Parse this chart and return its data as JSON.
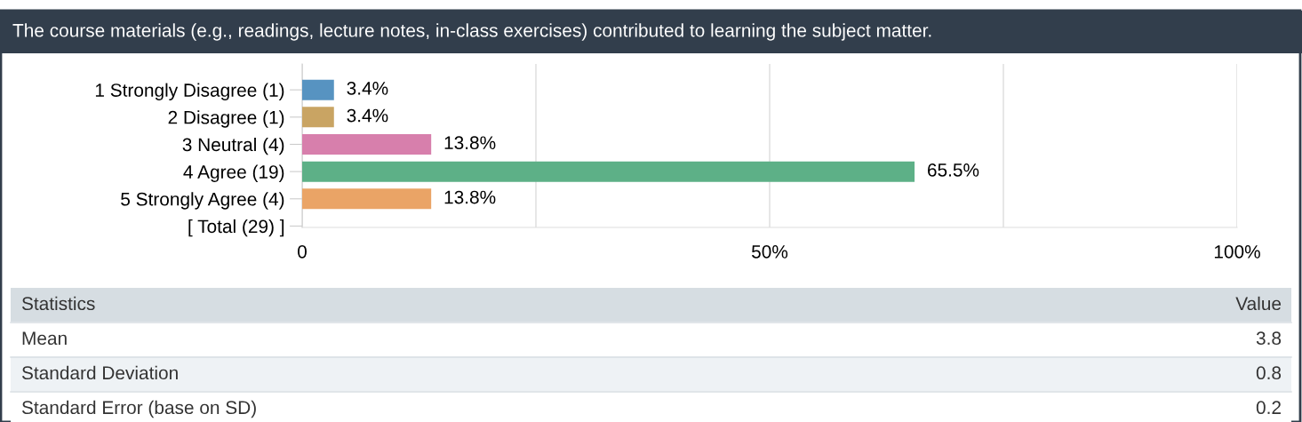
{
  "chart_data": {
    "type": "bar",
    "orientation": "horizontal",
    "title": "The course materials (e.g., readings, lecture notes, in-class exercises) contributed to learning the subject matter.",
    "categories": [
      "1 Strongly Disagree (1)",
      "2 Disagree (1)",
      "3 Neutral (4)",
      "4 Agree (19)",
      "5 Strongly Agree (4)",
      "[ Total (29) ]"
    ],
    "values": [
      3.4,
      3.4,
      13.8,
      65.5,
      13.8,
      null
    ],
    "colors": [
      "#5793c1",
      "#c9a463",
      "#d77fac",
      "#5db087",
      "#eaa466",
      null
    ],
    "value_labels": [
      "3.4%",
      "3.4%",
      "13.8%",
      "65.5%",
      "13.8%",
      null
    ],
    "xlim": [
      0,
      100
    ],
    "xticks": [
      0,
      {
        "value": 25,
        "label": null
      },
      {
        "value": 50,
        "label": "50%"
      },
      {
        "value": 75,
        "label": null
      },
      {
        "value": 100,
        "label": "100%"
      }
    ],
    "grid": "x",
    "annotations": [
      "Statistics",
      "Value",
      "Mean",
      "3.8",
      "Standard Deviation",
      "0.8",
      "Standard Error (base on SD)",
      "0.2"
    ]
  }
}
